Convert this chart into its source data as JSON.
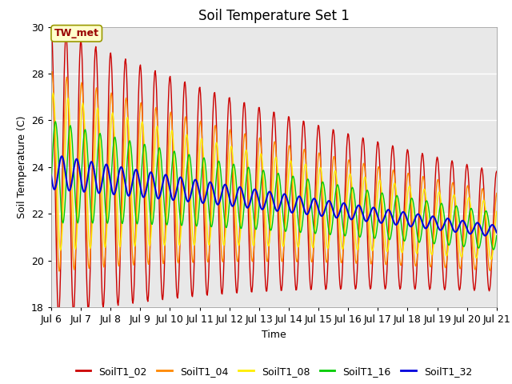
{
  "title": "Soil Temperature Set 1",
  "xlabel": "Time",
  "ylabel": "Soil Temperature (C)",
  "ylim": [
    18,
    30
  ],
  "yticks": [
    18,
    20,
    22,
    24,
    26,
    28,
    30
  ],
  "xlim_days": [
    6,
    21
  ],
  "xtick_labels": [
    "Jul 6",
    "Jul 7",
    "Jul 8",
    "Jul 9",
    "Jul 10",
    "Jul 11",
    "Jul 12",
    "Jul 13",
    "Jul 14",
    "Jul 15",
    "Jul 16",
    "Jul 17",
    "Jul 18",
    "Jul 19",
    "Jul 20",
    "Jul 21"
  ],
  "series_colors": {
    "SoilT1_02": "#cc0000",
    "SoilT1_04": "#ff8800",
    "SoilT1_08": "#ffee00",
    "SoilT1_16": "#00cc00",
    "SoilT1_32": "#0000dd"
  },
  "annotation_text": "TW_met",
  "annotation_color": "#990000",
  "annotation_bg": "#ffffcc",
  "annotation_border": "#999900",
  "background_plot": "#e8e8e8",
  "background_fig": "#ffffff",
  "grid_color": "#ffffff",
  "title_fontsize": 12,
  "axis_fontsize": 9,
  "tick_fontsize": 9,
  "legend_fontsize": 9
}
